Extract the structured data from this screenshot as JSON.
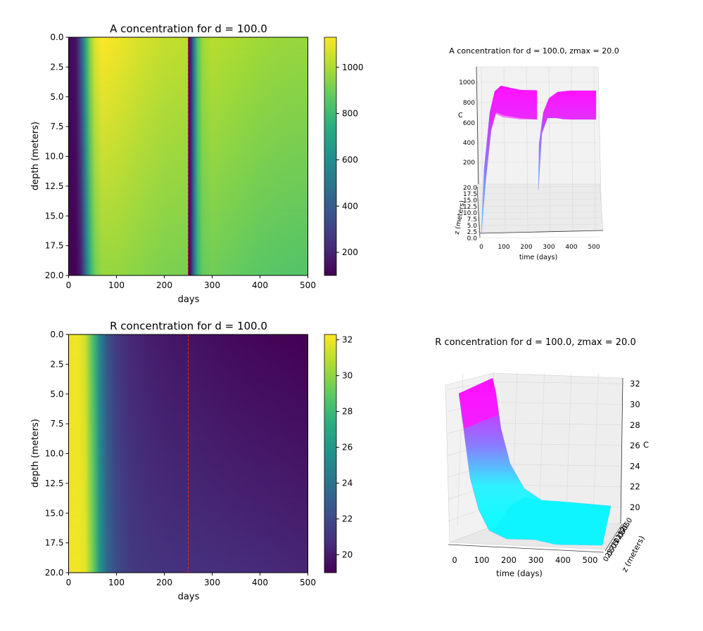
{
  "chart_data": [
    {
      "type": "heatmap",
      "title": "A concentration for d = 100.0",
      "xlabel": "days",
      "ylabel": "depth (meters)",
      "xlim": [
        0,
        500
      ],
      "ylim": [
        20,
        0
      ],
      "xticks": [
        "0",
        "100",
        "200",
        "300",
        "400",
        "500"
      ],
      "yticks": [
        "0.0",
        "2.5",
        "5.0",
        "7.5",
        "10.0",
        "12.5",
        "15.0",
        "17.5",
        "20.0"
      ],
      "colorbar_ticks": [
        "200",
        "400",
        "600",
        "800",
        "1000"
      ],
      "colorbar_range": [
        100,
        1130
      ],
      "colormap": "viridis",
      "marker_day": 250,
      "marker_color": "#d62728",
      "profile_days": [
        0,
        15,
        25,
        35,
        45,
        55,
        70,
        100,
        150,
        200,
        249,
        250,
        255,
        262,
        270,
        280,
        300,
        350,
        400,
        450,
        500
      ],
      "profile_surface": [
        120,
        150,
        350,
        700,
        950,
        1080,
        1130,
        1110,
        1070,
        1040,
        1030,
        130,
        200,
        550,
        850,
        980,
        1020,
        1000,
        980,
        970,
        965
      ],
      "profile_bottom": [
        100,
        110,
        180,
        450,
        750,
        900,
        960,
        960,
        940,
        920,
        915,
        100,
        180,
        480,
        780,
        880,
        900,
        880,
        860,
        850,
        845
      ]
    },
    {
      "type": "surface3d",
      "title": "A concentration for d = 100.0, zmax = 20.0",
      "xlabel": "time (days)",
      "ylabel": "z (meters)",
      "zlabel": "C",
      "xticks": [
        "0",
        "100",
        "200",
        "300",
        "400",
        "500"
      ],
      "yticks": [
        "0.0",
        "2.5",
        "5.0",
        "7.5",
        "10.0",
        "12.5",
        "15.0",
        "17.5",
        "20.0"
      ],
      "zticks": [
        "200",
        "400",
        "600",
        "800",
        "1000"
      ]
    },
    {
      "type": "heatmap",
      "title": "R concentration for d = 100.0",
      "xlabel": "days",
      "ylabel": "depth (meters)",
      "xlim": [
        0,
        500
      ],
      "ylim": [
        20,
        0
      ],
      "xticks": [
        "0",
        "100",
        "200",
        "300",
        "400",
        "500"
      ],
      "yticks": [
        "0.0",
        "2.5",
        "5.0",
        "7.5",
        "10.0",
        "12.5",
        "15.0",
        "17.5",
        "20.0"
      ],
      "colorbar_ticks": [
        "20",
        "22",
        "24",
        "26",
        "28",
        "30",
        "32"
      ],
      "colorbar_range": [
        19.0,
        32.3
      ],
      "colormap": "viridis",
      "marker_day": 250,
      "marker_color": "#d62728",
      "profile_days": [
        0,
        20,
        35,
        50,
        65,
        80,
        100,
        130,
        170,
        220,
        250,
        300,
        350,
        400,
        450,
        500
      ],
      "profile_surface": [
        32.0,
        32.0,
        31.3,
        28.5,
        25.0,
        22.5,
        21.2,
        20.5,
        20.1,
        19.8,
        19.7,
        19.5,
        19.3,
        19.2,
        19.1,
        19.0
      ],
      "profile_bottom": [
        32.0,
        32.0,
        31.8,
        29.5,
        26.0,
        23.5,
        22.0,
        21.3,
        21.0,
        20.9,
        20.9,
        20.8,
        20.7,
        20.6,
        20.5,
        20.4
      ]
    },
    {
      "type": "surface3d",
      "title": "R concentration for d = 100.0, zmax = 20.0",
      "xlabel": "time (days)",
      "ylabel": "z (meters)",
      "zlabel": "C",
      "xticks": [
        "0",
        "100",
        "200",
        "300",
        "400",
        "500"
      ],
      "yticks": [
        "0.0",
        "2.5",
        "5.0",
        "7.5",
        "10.0",
        "12.5",
        "15.0",
        "17.5",
        "20.0"
      ],
      "zticks": [
        "20",
        "22",
        "24",
        "26",
        "28",
        "30",
        "32"
      ]
    }
  ]
}
